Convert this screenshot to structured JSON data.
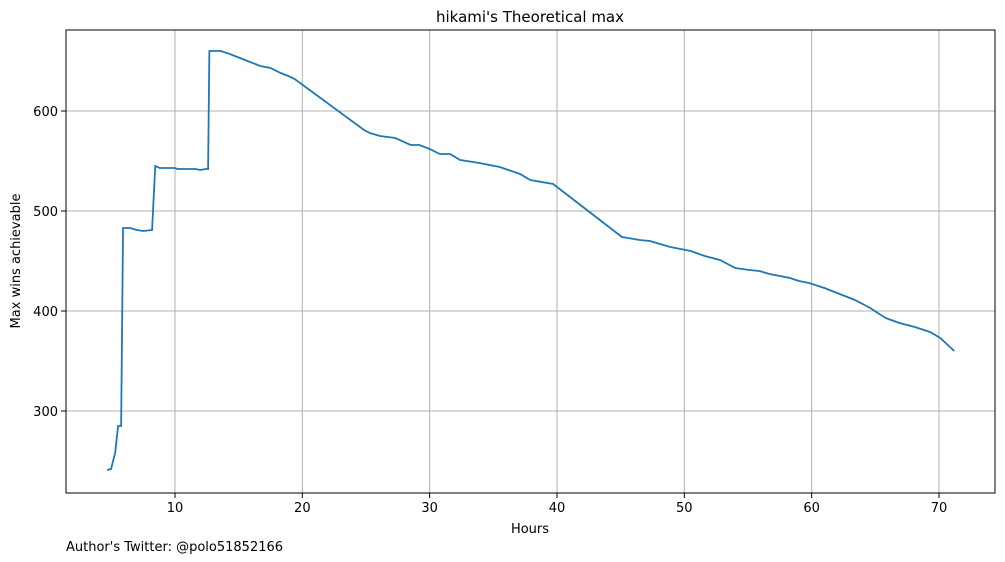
{
  "chart_data": {
    "type": "line",
    "title": "hikami's Theoretical max",
    "xlabel": "Hours",
    "ylabel": "Max wins achievable",
    "annotation": "Author's Twitter: @polo51852166",
    "x": [
      4.67,
      4.98,
      5.3,
      5.53,
      5.77,
      5.92,
      6.47,
      7.0,
      7.5,
      8.2,
      8.45,
      8.8,
      10,
      10.2,
      11.6,
      12,
      12.4,
      12.6,
      12.7,
      13.3,
      13.6,
      14.3,
      15.1,
      15.9,
      16.7,
      17.5,
      18.3,
      18.9,
      19.4,
      24.85,
      25.3,
      26.1,
      27.3,
      28.5,
      29.2,
      30,
      30.8,
      31.6,
      32.4,
      33.9,
      35.5,
      37.1,
      37.9,
      39.7,
      45.1,
      46.5,
      47.3,
      48.9,
      50.5,
      51.6,
      52.8,
      54,
      55.1,
      55.9,
      56.7,
      58.3,
      59,
      59.8,
      61,
      61.8,
      62.6,
      63.4,
      64.6,
      65.8,
      66.9,
      68.1,
      69.3,
      70.1,
      71.2
    ],
    "series": [
      {
        "name": "Max wins achievable",
        "color": "#1f77b4",
        "values": [
          241,
          242,
          258,
          285,
          285,
          483,
          483,
          481,
          480,
          481,
          545,
          543,
          543,
          542,
          542,
          541,
          542,
          542,
          660,
          660,
          660,
          657,
          653,
          649,
          645,
          643,
          638,
          635,
          632,
          581,
          578,
          575,
          573,
          566,
          566,
          562,
          557,
          557,
          551,
          548,
          544,
          537,
          531,
          527,
          474,
          471,
          470,
          464,
          460,
          455,
          451,
          443,
          441,
          440,
          437,
          433,
          430,
          428,
          423,
          419,
          415,
          411,
          403,
          393,
          388,
          384,
          379,
          373,
          360
        ]
      }
    ],
    "xlim": [
      1.44,
      74.4
    ],
    "ylim": [
      218,
      681
    ],
    "xticks": [
      10,
      20,
      30,
      40,
      50,
      60,
      70
    ],
    "yticks": [
      300,
      400,
      500,
      600
    ],
    "grid": true
  }
}
